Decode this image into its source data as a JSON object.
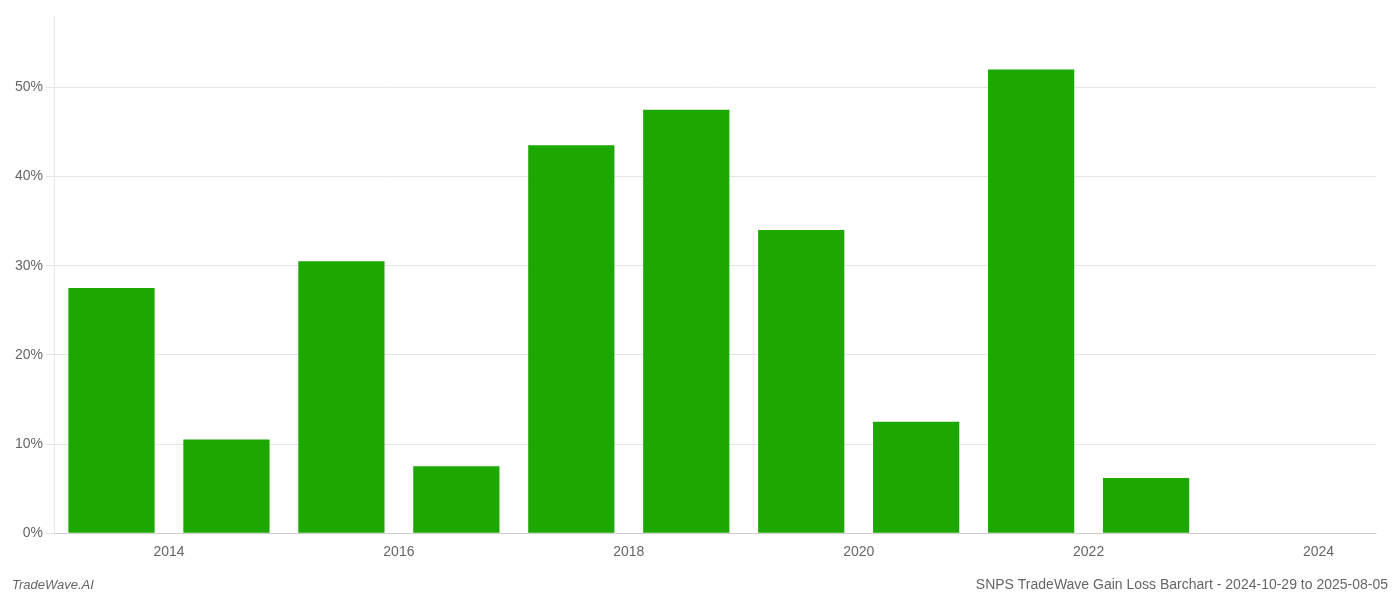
{
  "chart_data": {
    "type": "bar",
    "title": "SNPS TradeWave Gain Loss Barchart - 2024-10-29 to 2025-08-05",
    "annotations": [
      "TradeWave.AI"
    ],
    "x": [
      2013.5,
      2014.5,
      2015.5,
      2016.5,
      2017.5,
      2018.5,
      2019.5,
      2020.5,
      2021.5,
      2022.5,
      2023.5
    ],
    "values": [
      0.275,
      0.105,
      0.305,
      0.075,
      0.435,
      0.475,
      0.34,
      0.125,
      0.52,
      0.062,
      0.0
    ],
    "color": "#1ca800",
    "xlim": [
      2013.0,
      2024.5
    ],
    "xticks": [
      2014,
      2016,
      2018,
      2020,
      2022,
      2024
    ],
    "ylim": [
      0,
      0.58
    ],
    "yticks": [
      {
        "value": 0.0,
        "label": "0%"
      },
      {
        "value": 0.1,
        "label": "10%"
      },
      {
        "value": 0.2,
        "label": "20%"
      },
      {
        "value": 0.3,
        "label": "30%"
      },
      {
        "value": 0.4,
        "label": "40%"
      },
      {
        "value": 0.5,
        "label": "50%"
      }
    ],
    "grid": true
  }
}
